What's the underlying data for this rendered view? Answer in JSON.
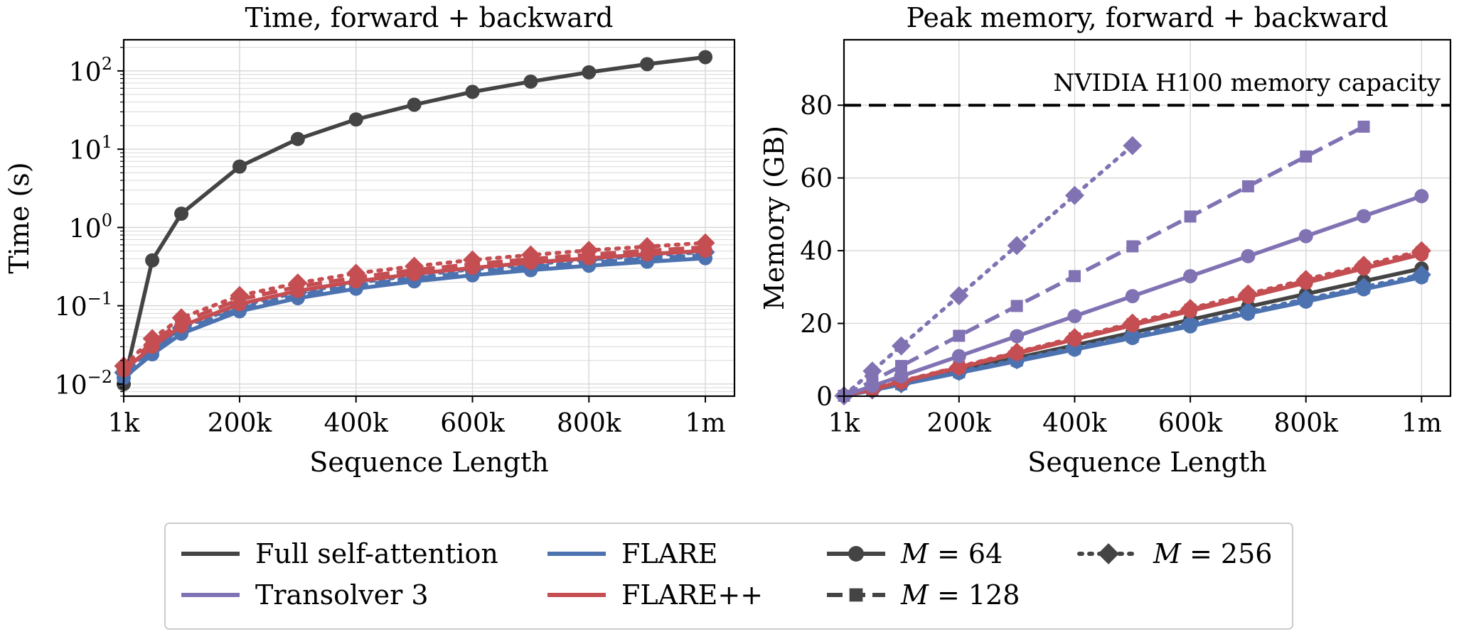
{
  "colors": {
    "full": "#444444",
    "flare": "#4c72b0",
    "flarepp": "#c44e52",
    "transolver": "#8172b3",
    "axis": "#000000",
    "grid": "#d9d9d9"
  },
  "legend": {
    "items": [
      {
        "label": "Full self-attention",
        "kind": "line",
        "color": "full"
      },
      {
        "label": "FLARE",
        "kind": "line",
        "color": "flare"
      },
      {
        "label": "Transolver 3",
        "kind": "line",
        "color": "transolver"
      },
      {
        "label": "FLARE++",
        "kind": "line",
        "color": "flarepp"
      }
    ],
    "styles": [
      {
        "var": "M",
        "eq": " = 64",
        "dash": "solid",
        "marker": "circle"
      },
      {
        "var": "M",
        "eq": " = 128",
        "dash": "dashed",
        "marker": "square"
      },
      {
        "var": "M",
        "eq": " = 256",
        "dash": "dotted",
        "marker": "diamond"
      }
    ]
  },
  "chart_data": [
    {
      "type": "line",
      "title": "Time, forward + backward",
      "xlabel": "Sequence Length",
      "ylabel": "Time (s)",
      "yscale": "log",
      "xlim": [
        1000,
        1050000
      ],
      "ylim": [
        0.007,
        250
      ],
      "grid": true,
      "x_ticks": [
        {
          "value": 1000,
          "label": "1k"
        },
        {
          "value": 200000,
          "label": "200k"
        },
        {
          "value": 400000,
          "label": "400k"
        },
        {
          "value": 600000,
          "label": "600k"
        },
        {
          "value": 800000,
          "label": "800k"
        },
        {
          "value": 1000000,
          "label": "1m"
        }
      ],
      "y_ticks": [
        {
          "value": 0.01,
          "base": "10",
          "exp": "−2"
        },
        {
          "value": 0.1,
          "base": "10",
          "exp": "−1"
        },
        {
          "value": 1,
          "base": "10",
          "exp": "0"
        },
        {
          "value": 10,
          "base": "10",
          "exp": "1"
        },
        {
          "value": 100,
          "base": "10",
          "exp": "2"
        }
      ],
      "series": [
        {
          "color": "full",
          "dash": "solid",
          "marker": "circle",
          "x": [
            1000,
            50000,
            100000,
            200000,
            300000,
            400000,
            500000,
            600000,
            700000,
            800000,
            900000,
            1000000
          ],
          "y": [
            0.01,
            0.38,
            1.5,
            6.0,
            13.5,
            24,
            37,
            54,
            73,
            96,
            122,
            150
          ]
        },
        {
          "color": "flare",
          "dash": "solid",
          "marker": "circle",
          "x": [
            1000,
            50000,
            100000,
            200000,
            300000,
            400000,
            500000,
            600000,
            700000,
            800000,
            900000,
            1000000
          ],
          "y": [
            0.012,
            0.024,
            0.044,
            0.085,
            0.125,
            0.165,
            0.205,
            0.245,
            0.285,
            0.325,
            0.365,
            0.405
          ]
        },
        {
          "color": "flare",
          "dash": "dashed",
          "marker": "square",
          "x": [
            1000,
            50000,
            100000,
            200000,
            300000,
            400000,
            500000,
            600000,
            700000,
            800000,
            900000,
            1000000
          ],
          "y": [
            0.013,
            0.026,
            0.048,
            0.092,
            0.136,
            0.18,
            0.224,
            0.268,
            0.312,
            0.356,
            0.4,
            0.444
          ]
        },
        {
          "color": "flare",
          "dash": "dotted",
          "marker": "diamond",
          "x": [
            1000,
            50000,
            100000,
            200000,
            300000,
            400000,
            500000,
            600000,
            700000,
            800000,
            900000,
            1000000
          ],
          "y": [
            0.014,
            0.028,
            0.052,
            0.1,
            0.148,
            0.196,
            0.244,
            0.292,
            0.34,
            0.388,
            0.436,
            0.484
          ]
        },
        {
          "color": "flarepp",
          "dash": "solid",
          "marker": "circle",
          "x": [
            1000,
            50000,
            100000,
            200000,
            300000,
            400000,
            500000,
            600000,
            700000,
            800000,
            900000,
            1000000
          ],
          "y": [
            0.015,
            0.03,
            0.055,
            0.105,
            0.155,
            0.205,
            0.255,
            0.305,
            0.355,
            0.405,
            0.455,
            0.505
          ]
        },
        {
          "color": "flarepp",
          "dash": "dashed",
          "marker": "square",
          "x": [
            1000,
            50000,
            100000,
            200000,
            300000,
            400000,
            500000,
            600000,
            700000,
            800000,
            900000,
            1000000
          ],
          "y": [
            0.016,
            0.034,
            0.062,
            0.12,
            0.175,
            0.23,
            0.285,
            0.34,
            0.395,
            0.45,
            0.505,
            0.56
          ]
        },
        {
          "color": "flarepp",
          "dash": "dotted",
          "marker": "diamond",
          "x": [
            1000,
            50000,
            100000,
            200000,
            300000,
            400000,
            500000,
            600000,
            700000,
            800000,
            900000,
            1000000
          ],
          "y": [
            0.017,
            0.038,
            0.07,
            0.135,
            0.195,
            0.26,
            0.32,
            0.385,
            0.445,
            0.51,
            0.57,
            0.635
          ]
        }
      ]
    },
    {
      "type": "line",
      "title": "Peak memory, forward + backward",
      "xlabel": "Sequence Length",
      "ylabel": "Memory (GB)",
      "yscale": "linear",
      "xlim": [
        1000,
        1050000
      ],
      "ylim": [
        0,
        98
      ],
      "grid": true,
      "x_ticks": [
        {
          "value": 1000,
          "label": "1k"
        },
        {
          "value": 200000,
          "label": "200k"
        },
        {
          "value": 400000,
          "label": "400k"
        },
        {
          "value": 600000,
          "label": "600k"
        },
        {
          "value": 800000,
          "label": "800k"
        },
        {
          "value": 1000000,
          "label": "1m"
        }
      ],
      "y_ticks": [
        {
          "value": 0,
          "label": "0"
        },
        {
          "value": 20,
          "label": "20"
        },
        {
          "value": 40,
          "label": "40"
        },
        {
          "value": 60,
          "label": "60"
        },
        {
          "value": 80,
          "label": "80"
        }
      ],
      "hline": {
        "y": 80,
        "label": "NVIDIA H100 memory capacity"
      },
      "series": [
        {
          "color": "full",
          "dash": "solid",
          "marker": "circle",
          "x": [
            1000,
            50000,
            100000,
            200000,
            300000,
            400000,
            500000,
            600000,
            700000,
            800000,
            900000,
            1000000
          ],
          "y": [
            0.1,
            1.8,
            3.5,
            7.0,
            10.5,
            14.0,
            17.5,
            21.0,
            24.6,
            28.1,
            31.6,
            35.1
          ]
        },
        {
          "color": "flare",
          "dash": "solid",
          "marker": "circle",
          "x": [
            1000,
            50000,
            100000,
            200000,
            300000,
            400000,
            500000,
            600000,
            700000,
            800000,
            900000,
            1000000
          ],
          "y": [
            0.1,
            1.6,
            3.2,
            6.4,
            9.6,
            12.8,
            16.0,
            19.2,
            22.7,
            26.0,
            29.4,
            32.7
          ]
        },
        {
          "color": "flare",
          "dash": "dashed",
          "marker": "square",
          "x": [
            1000,
            50000,
            100000,
            200000,
            300000,
            400000,
            500000,
            600000,
            700000,
            800000,
            900000,
            1000000
          ],
          "y": [
            0.1,
            1.7,
            3.3,
            6.6,
            9.8,
            13.1,
            16.3,
            19.6,
            23.0,
            26.4,
            29.7,
            33.0
          ]
        },
        {
          "color": "flare",
          "dash": "dotted",
          "marker": "diamond",
          "x": [
            1000,
            50000,
            100000,
            200000,
            300000,
            400000,
            500000,
            600000,
            700000,
            800000,
            900000,
            1000000
          ],
          "y": [
            0.1,
            1.7,
            3.4,
            6.8,
            10.0,
            13.4,
            16.6,
            19.9,
            23.3,
            26.7,
            30.0,
            33.4
          ]
        },
        {
          "color": "flarepp",
          "dash": "solid",
          "marker": "circle",
          "x": [
            1000,
            50000,
            100000,
            200000,
            300000,
            400000,
            500000,
            600000,
            700000,
            800000,
            900000,
            1000000
          ],
          "y": [
            0.1,
            1.9,
            3.9,
            7.8,
            11.7,
            15.6,
            19.5,
            23.4,
            27.3,
            31.2,
            35.1,
            39.0
          ]
        },
        {
          "color": "flarepp",
          "dash": "dashed",
          "marker": "square",
          "x": [
            1000,
            50000,
            100000,
            200000,
            300000,
            400000,
            500000,
            600000,
            700000,
            800000,
            900000,
            1000000
          ],
          "y": [
            0.1,
            2.0,
            4.0,
            8.0,
            11.9,
            15.9,
            19.8,
            23.8,
            27.7,
            31.7,
            35.6,
            39.6
          ]
        },
        {
          "color": "flarepp",
          "dash": "dotted",
          "marker": "diamond",
          "x": [
            1000,
            50000,
            100000,
            200000,
            300000,
            400000,
            500000,
            600000,
            700000,
            800000,
            900000,
            1000000
          ],
          "y": [
            0.1,
            2.0,
            4.1,
            8.1,
            12.1,
            16.1,
            20.1,
            24.1,
            28.1,
            32.1,
            36.0,
            40.0
          ]
        },
        {
          "color": "transolver",
          "dash": "solid",
          "marker": "circle",
          "x": [
            1000,
            50000,
            100000,
            200000,
            300000,
            400000,
            500000,
            600000,
            700000,
            800000,
            900000,
            1000000
          ],
          "y": [
            0.1,
            2.8,
            5.5,
            11.0,
            16.5,
            22.0,
            27.5,
            33.0,
            38.5,
            44.0,
            49.5,
            55.0
          ]
        },
        {
          "color": "transolver",
          "dash": "dashed",
          "marker": "square",
          "x": [
            1000,
            50000,
            100000,
            200000,
            300000,
            400000,
            500000,
            600000,
            700000,
            800000,
            900000
          ],
          "y": [
            0.1,
            4.2,
            8.3,
            16.6,
            24.8,
            33.0,
            41.2,
            49.4,
            57.7,
            65.9,
            74.1
          ]
        },
        {
          "color": "transolver",
          "dash": "dotted",
          "marker": "diamond",
          "x": [
            1000,
            50000,
            100000,
            200000,
            300000,
            400000,
            500000
          ],
          "y": [
            0.1,
            6.9,
            13.8,
            27.6,
            41.4,
            55.2,
            68.9
          ]
        }
      ]
    }
  ]
}
